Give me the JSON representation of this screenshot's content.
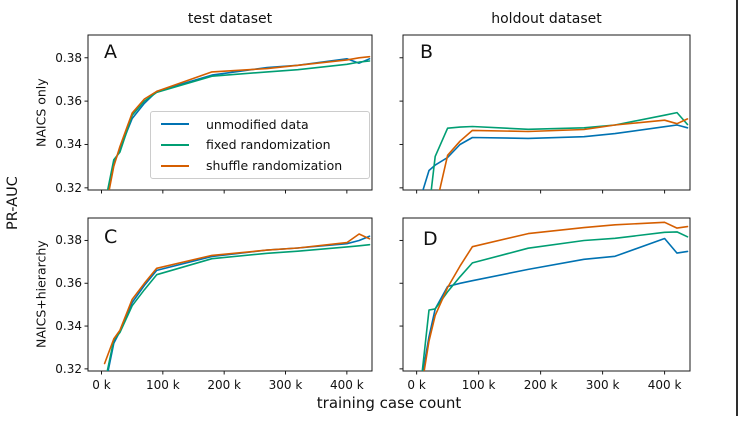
{
  "figure": {
    "ylabel": "PR-AUC",
    "xlabel": "training case count",
    "column_titles": [
      "test dataset",
      "holdout dataset"
    ],
    "row_labels": [
      "NAICS only",
      "NAICS+hierarchy"
    ],
    "colors": {
      "unmodified": "#0072b2",
      "fixed": "#009e73",
      "shuffle": "#d55e00",
      "text": "#111111",
      "spine": "#1a1a1a",
      "legend_border": "#cccccc",
      "background": "#ffffff"
    }
  },
  "legend": {
    "position": "panel-A-center",
    "items": [
      {
        "label": "unmodified data",
        "color": "#0072b2"
      },
      {
        "label": "fixed randomization",
        "color": "#009e73"
      },
      {
        "label": "shuffle randomization",
        "color": "#d55e00"
      }
    ]
  },
  "chart_data": [
    {
      "id": "A",
      "type": "line",
      "title": "test dataset",
      "row_label": "NAICS only",
      "x_unit": "thousands of training cases",
      "x": [
        5,
        20,
        30,
        50,
        70,
        90,
        180,
        270,
        320,
        400,
        420,
        437
      ],
      "series": [
        {
          "name": "unmodified data",
          "color": "#0072b2",
          "values": [
            0.31,
            0.331,
            0.338,
            0.352,
            0.359,
            0.3645,
            0.372,
            0.3755,
            0.3765,
            0.3795,
            0.3775,
            0.3795
          ]
        },
        {
          "name": "fixed randomization",
          "color": "#009e73",
          "values": [
            0.312,
            0.333,
            0.3365,
            0.3535,
            0.36,
            0.364,
            0.3715,
            0.3735,
            0.3745,
            0.377,
            0.378,
            0.3785
          ]
        },
        {
          "name": "shuffle randomization",
          "color": "#d55e00",
          "values": [
            0.308,
            0.33,
            0.339,
            0.3545,
            0.361,
            0.3645,
            0.3735,
            0.375,
            0.3765,
            0.379,
            0.38,
            0.3805
          ]
        }
      ],
      "xlim": [
        -22,
        441
      ],
      "ylim": [
        0.319,
        0.3905
      ],
      "x_ticks": [
        0,
        100,
        200,
        300,
        400
      ],
      "x_tick_labels": [
        "0 k",
        "100 k",
        "200 k",
        "300 k",
        "400 k"
      ],
      "y_ticks": [
        0.32,
        0.34,
        0.36,
        0.38
      ],
      "y_tick_labels": [
        "0.32",
        "0.34",
        "0.36",
        "0.38"
      ],
      "show_x_tick_labels": false,
      "show_y_tick_labels": true,
      "grid": false
    },
    {
      "id": "B",
      "type": "line",
      "title": "holdout dataset",
      "row_label": "NAICS only",
      "x_unit": "thousands of training cases",
      "x": [
        5,
        20,
        30,
        50,
        70,
        90,
        180,
        270,
        320,
        400,
        420,
        437
      ],
      "series": [
        {
          "name": "unmodified data",
          "color": "#0072b2",
          "values": [
            0.314,
            0.328,
            0.3305,
            0.334,
            0.34,
            0.3432,
            0.3428,
            0.3436,
            0.345,
            0.3482,
            0.349,
            0.3477
          ]
        },
        {
          "name": "fixed randomization",
          "color": "#009e73",
          "values": [
            0.29,
            0.31,
            0.3345,
            0.3475,
            0.348,
            0.3483,
            0.347,
            0.3477,
            0.349,
            0.3535,
            0.3547,
            0.3492
          ]
        },
        {
          "name": "shuffle randomization",
          "color": "#d55e00",
          "values": [
            0.28,
            0.295,
            0.31,
            0.335,
            0.3415,
            0.3465,
            0.346,
            0.3469,
            0.349,
            0.3512,
            0.3496,
            0.3518
          ]
        }
      ],
      "xlim": [
        -22,
        441
      ],
      "ylim": [
        0.319,
        0.3905
      ],
      "x_ticks": [
        0,
        100,
        200,
        300,
        400
      ],
      "x_tick_labels": [
        "0 k",
        "100 k",
        "200 k",
        "300 k",
        "400 k"
      ],
      "y_ticks": [
        0.32,
        0.34,
        0.36,
        0.38
      ],
      "y_tick_labels": [
        "0.32",
        "0.34",
        "0.36",
        "0.38"
      ],
      "show_x_tick_labels": false,
      "show_y_tick_labels": false,
      "grid": false
    },
    {
      "id": "C",
      "type": "line",
      "title": "",
      "row_label": "NAICS+hierarchy",
      "x_unit": "thousands of training cases",
      "x": [
        5,
        20,
        30,
        50,
        70,
        90,
        180,
        270,
        320,
        400,
        420,
        437
      ],
      "series": [
        {
          "name": "unmodified data",
          "color": "#0072b2",
          "values": [
            0.311,
            0.332,
            0.3375,
            0.351,
            0.359,
            0.366,
            0.3725,
            0.3755,
            0.3765,
            0.3785,
            0.38,
            0.382
          ]
        },
        {
          "name": "fixed randomization",
          "color": "#009e73",
          "values": [
            0.313,
            0.3335,
            0.337,
            0.3495,
            0.357,
            0.364,
            0.3715,
            0.374,
            0.375,
            0.377,
            0.3775,
            0.378
          ]
        },
        {
          "name": "shuffle randomization",
          "color": "#d55e00",
          "values": [
            0.3225,
            0.334,
            0.338,
            0.3525,
            0.36,
            0.367,
            0.373,
            0.3755,
            0.3765,
            0.379,
            0.383,
            0.3808
          ]
        }
      ],
      "xlim": [
        -22,
        441
      ],
      "ylim": [
        0.319,
        0.3905
      ],
      "x_ticks": [
        0,
        100,
        200,
        300,
        400
      ],
      "x_tick_labels": [
        "0 k",
        "100 k",
        "200 k",
        "300 k",
        "400 k"
      ],
      "y_ticks": [
        0.32,
        0.34,
        0.36,
        0.38
      ],
      "y_tick_labels": [
        "0.32",
        "0.34",
        "0.36",
        "0.38"
      ],
      "show_x_tick_labels": true,
      "show_y_tick_labels": true,
      "grid": false
    },
    {
      "id": "D",
      "type": "line",
      "title": "",
      "row_label": "NAICS+hierarchy",
      "x_unit": "thousands of training cases",
      "x": [
        5,
        20,
        30,
        50,
        70,
        90,
        180,
        270,
        320,
        400,
        420,
        437
      ],
      "series": [
        {
          "name": "unmodified data",
          "color": "#0072b2",
          "values": [
            0.31,
            0.335,
            0.348,
            0.3585,
            0.36,
            0.3612,
            0.3665,
            0.3712,
            0.3726,
            0.3809,
            0.3741,
            0.3749
          ]
        },
        {
          "name": "fixed randomization",
          "color": "#009e73",
          "values": [
            0.308,
            0.3475,
            0.348,
            0.356,
            0.363,
            0.3695,
            0.3764,
            0.38,
            0.381,
            0.3838,
            0.384,
            0.3817
          ]
        },
        {
          "name": "shuffle randomization",
          "color": "#d55e00",
          "values": [
            0.306,
            0.333,
            0.345,
            0.358,
            0.368,
            0.3771,
            0.3832,
            0.386,
            0.3873,
            0.3885,
            0.3858,
            0.3865
          ]
        }
      ],
      "xlim": [
        -22,
        441
      ],
      "ylim": [
        0.319,
        0.3905
      ],
      "x_ticks": [
        0,
        100,
        200,
        300,
        400
      ],
      "x_tick_labels": [
        "0 k",
        "100 k",
        "200 k",
        "300 k",
        "400 k"
      ],
      "y_ticks": [
        0.32,
        0.34,
        0.36,
        0.38
      ],
      "y_tick_labels": [
        "0.32",
        "0.34",
        "0.36",
        "0.38"
      ],
      "show_x_tick_labels": true,
      "show_y_tick_labels": false,
      "grid": false
    }
  ]
}
